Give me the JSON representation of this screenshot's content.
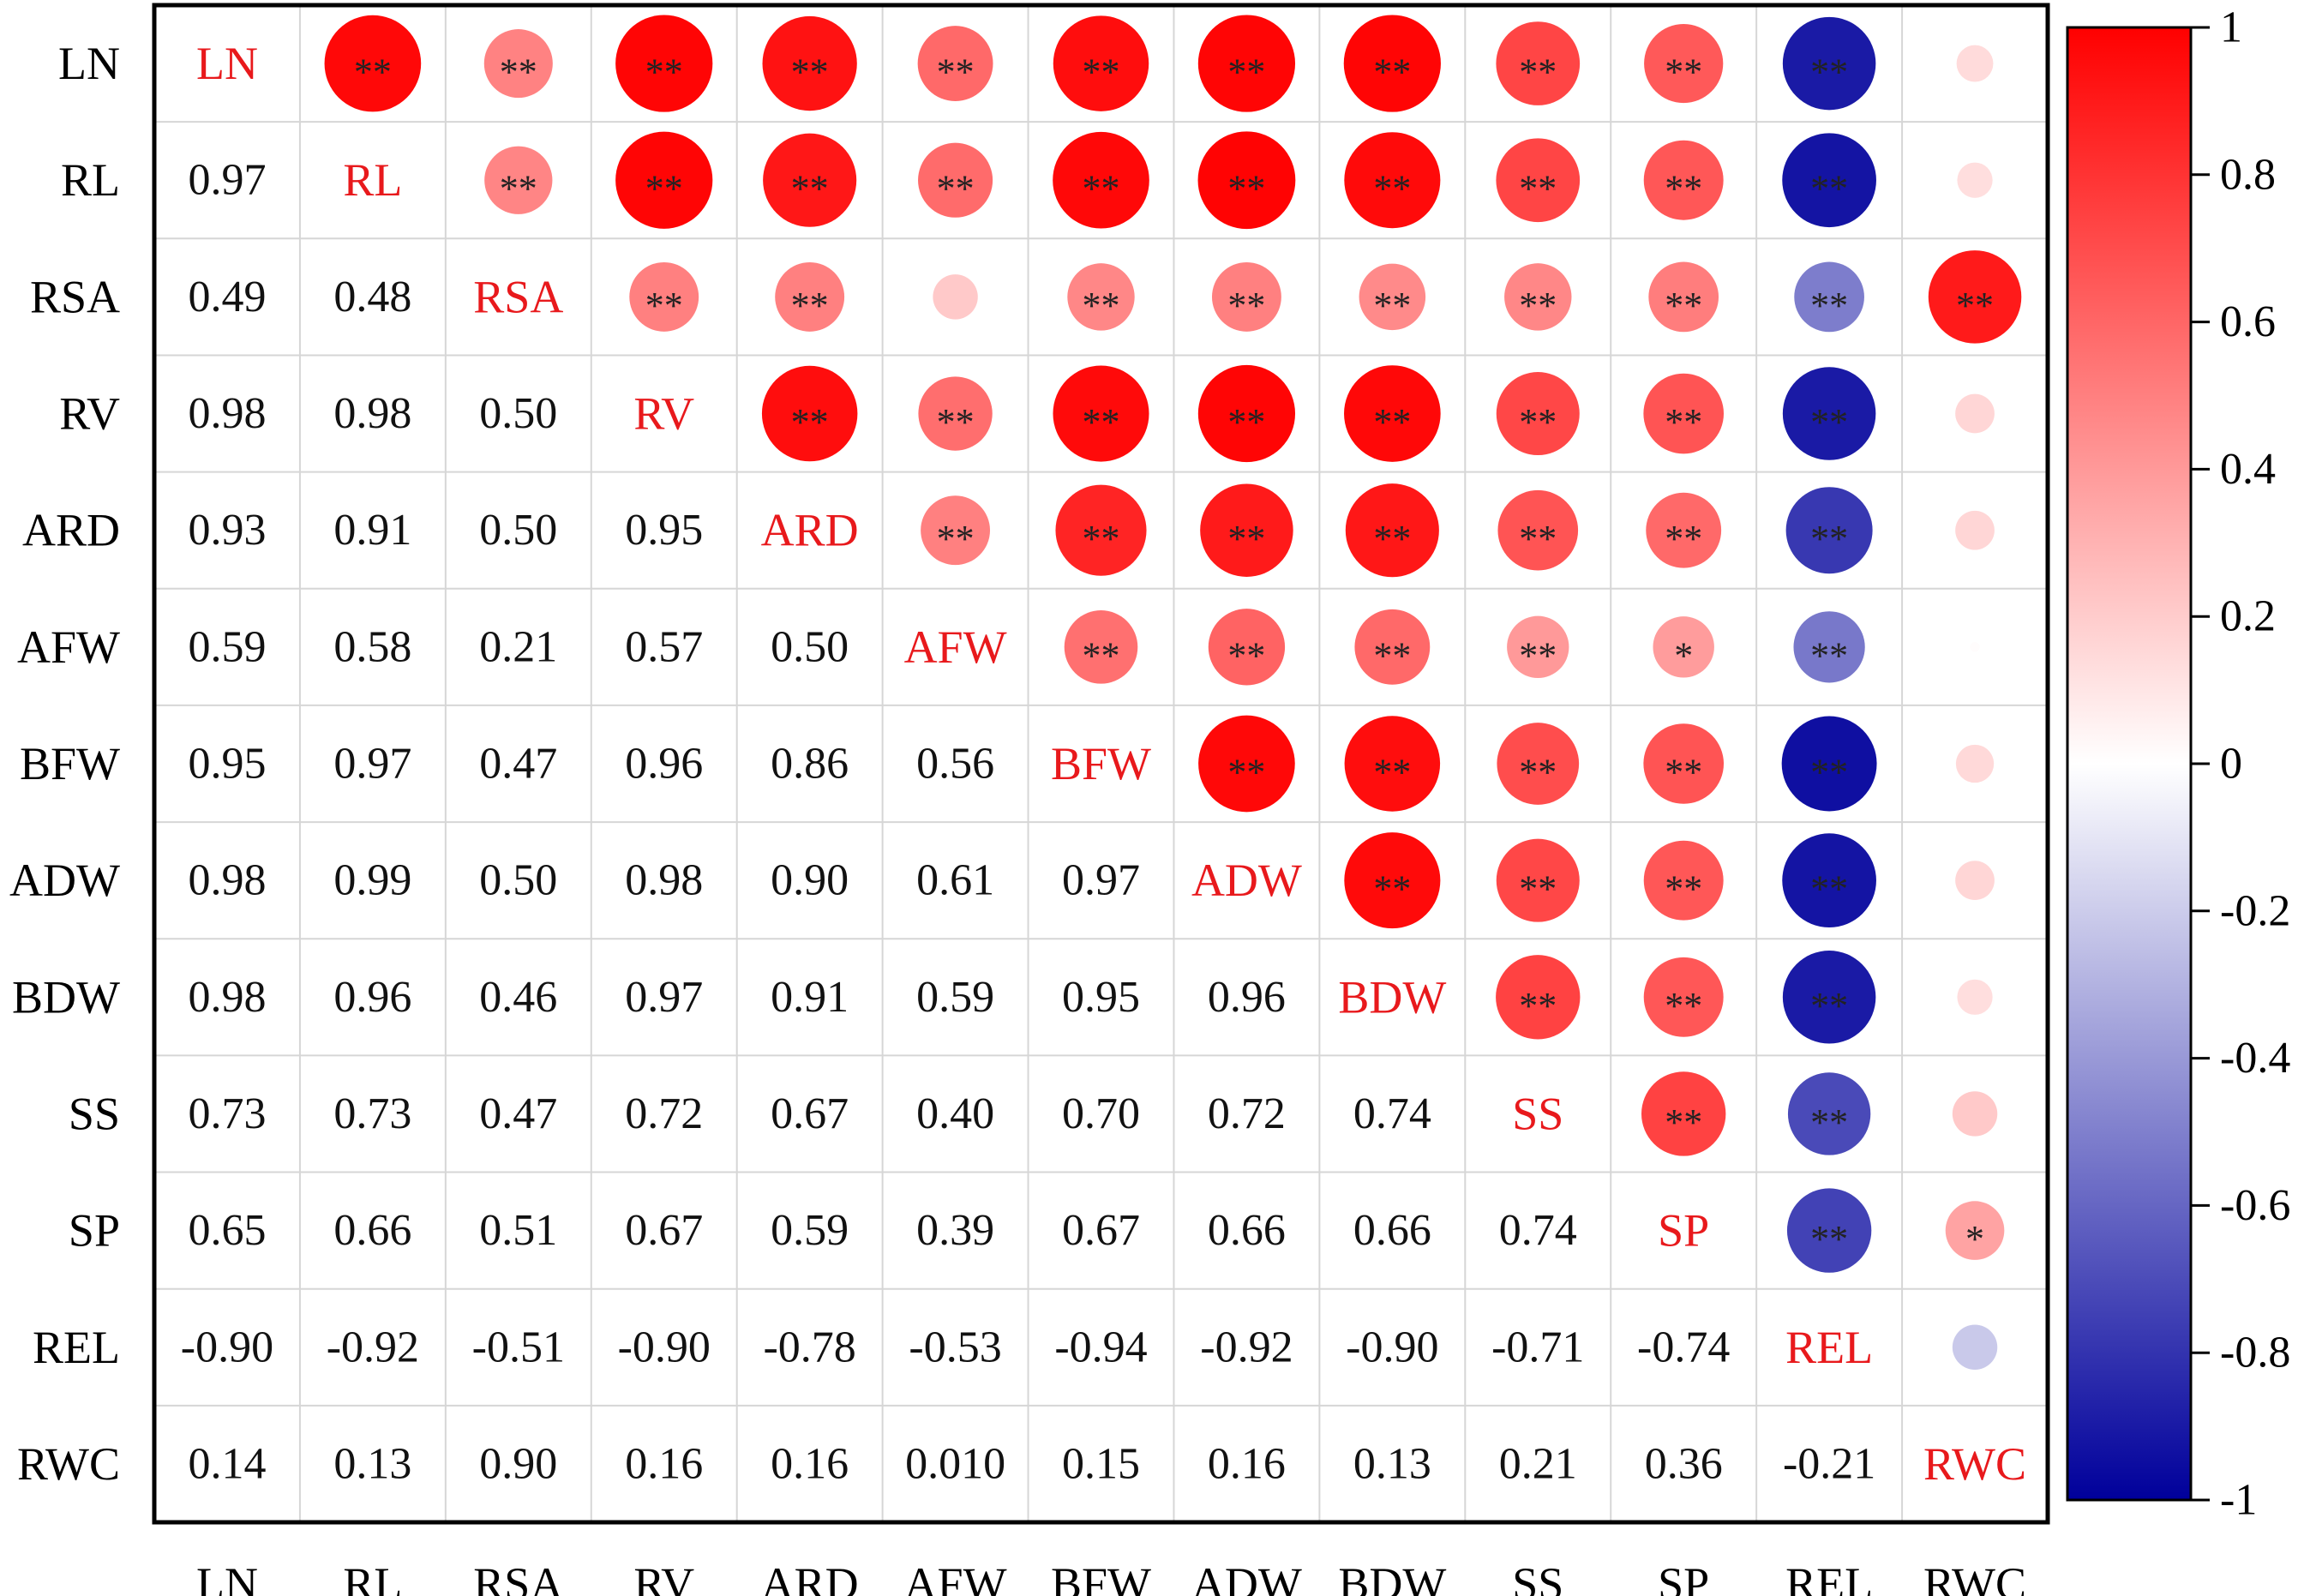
{
  "chart_data": {
    "type": "heatmap",
    "subtype": "correlation-matrix",
    "title": "",
    "variables": [
      "LN",
      "RL",
      "RSA",
      "RV",
      "ARD",
      "AFW",
      "BFW",
      "ADW",
      "BDW",
      "SS",
      "SP",
      "REL",
      "RWC"
    ],
    "lower_triangle_labels": [
      [],
      [
        "0.97"
      ],
      [
        "0.49",
        "0.48"
      ],
      [
        "0.98",
        "0.98",
        "0.50"
      ],
      [
        "0.93",
        "0.91",
        "0.50",
        "0.95"
      ],
      [
        "0.59",
        "0.58",
        "0.21",
        "0.57",
        "0.50"
      ],
      [
        "0.95",
        "0.97",
        "0.47",
        "0.96",
        "0.86",
        "0.56"
      ],
      [
        "0.98",
        "0.99",
        "0.50",
        "0.98",
        "0.90",
        "0.61",
        "0.97"
      ],
      [
        "0.98",
        "0.96",
        "0.46",
        "0.97",
        "0.91",
        "0.59",
        "0.95",
        "0.96"
      ],
      [
        "0.73",
        "0.73",
        "0.47",
        "0.72",
        "0.67",
        "0.40",
        "0.70",
        "0.72",
        "0.74"
      ],
      [
        "0.65",
        "0.66",
        "0.51",
        "0.67",
        "0.59",
        "0.39",
        "0.67",
        "0.66",
        "0.66",
        "0.74"
      ],
      [
        "-0.90",
        "-0.92",
        "-0.51",
        "-0.90",
        "-0.78",
        "-0.53",
        "-0.94",
        "-0.92",
        "-0.90",
        "-0.71",
        "-0.74"
      ],
      [
        "0.14",
        "0.13",
        "0.90",
        "0.16",
        "0.16",
        "0.010",
        "0.15",
        "0.16",
        "0.13",
        "0.21",
        "0.36",
        "-0.21"
      ]
    ],
    "significance": [
      [
        "",
        "**",
        "**",
        "**",
        "**",
        "**",
        "**",
        "**",
        "**",
        "**",
        "**",
        "**",
        ""
      ],
      [
        "",
        "",
        "**",
        "**",
        "**",
        "**",
        "**",
        "**",
        "**",
        "**",
        "**",
        "**",
        ""
      ],
      [
        "",
        "",
        "",
        "**",
        "**",
        "",
        "**",
        "**",
        "**",
        "**",
        "**",
        "**",
        "**"
      ],
      [
        "",
        "",
        "",
        "",
        "**",
        "**",
        "**",
        "**",
        "**",
        "**",
        "**",
        "**",
        ""
      ],
      [
        "",
        "",
        "",
        "",
        "",
        "**",
        "**",
        "**",
        "**",
        "**",
        "**",
        "**",
        ""
      ],
      [
        "",
        "",
        "",
        "",
        "",
        "",
        "**",
        "**",
        "**",
        "**",
        "*",
        "**",
        ""
      ],
      [
        "",
        "",
        "",
        "",
        "",
        "",
        "",
        "**",
        "**",
        "**",
        "**",
        "**",
        ""
      ],
      [
        "",
        "",
        "",
        "",
        "",
        "",
        "",
        "",
        "**",
        "**",
        "**",
        "**",
        ""
      ],
      [
        "",
        "",
        "",
        "",
        "",
        "",
        "",
        "",
        "",
        "**",
        "**",
        "**",
        ""
      ],
      [
        "",
        "",
        "",
        "",
        "",
        "",
        "",
        "",
        "",
        "",
        "**",
        "**",
        ""
      ],
      [
        "",
        "",
        "",
        "",
        "",
        "",
        "",
        "",
        "",
        "",
        "",
        "**",
        "*"
      ],
      [
        "",
        "",
        "",
        "",
        "",
        "",
        "",
        "",
        "",
        "",
        "",
        "",
        ""
      ],
      [
        "",
        "",
        "",
        "",
        "",
        "",
        "",
        "",
        "",
        "",
        "",
        "",
        ""
      ]
    ],
    "colorbar": {
      "min": -1,
      "max": 1,
      "tick_labels": [
        "1",
        "0.8",
        "0.6",
        "0.4",
        "0.2",
        "0",
        "-0.2",
        "-0.4",
        "-0.6",
        "-0.8",
        "-1"
      ],
      "colors": {
        "negative": "#00009b",
        "zero": "#ffffff",
        "positive": "#ff0000"
      }
    },
    "grid": true,
    "legend_position": "right",
    "diagonal_label_color": "#e8191c",
    "value_text_color": "#111111",
    "significance_marker_color": "#222222"
  }
}
